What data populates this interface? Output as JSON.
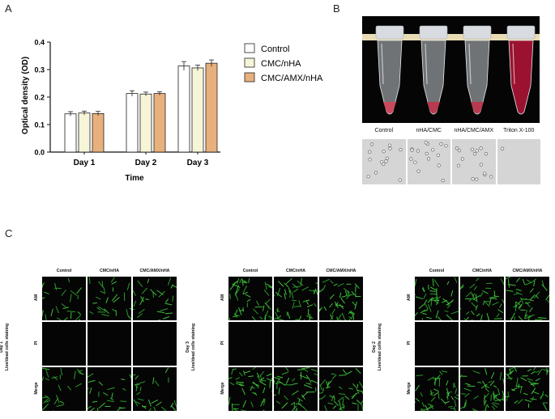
{
  "panels": {
    "a": "A",
    "b": "B",
    "c": "C"
  },
  "chart_data": {
    "type": "bar",
    "categories": [
      "Day 1",
      "Day 2",
      "Day 3"
    ],
    "series": [
      {
        "name": "Control",
        "values": [
          0.139,
          0.213,
          0.313
        ],
        "errors": [
          0.008,
          0.01,
          0.016
        ],
        "color": "#ffffff"
      },
      {
        "name": "CMC/nHA",
        "values": [
          0.142,
          0.211,
          0.306
        ],
        "errors": [
          0.007,
          0.007,
          0.01
        ],
        "color": "#f7f5d8"
      },
      {
        "name": "CMC/AMX/nHA",
        "values": [
          0.14,
          0.213,
          0.323
        ],
        "errors": [
          0.008,
          0.006,
          0.012
        ],
        "color": "#e8b07c"
      }
    ],
    "xlabel": "Time",
    "ylabel": "Optical density (OD)",
    "ylim": [
      0.0,
      0.4
    ],
    "yticks": [
      "0.0",
      "0.1",
      "0.2",
      "0.3",
      "0.4"
    ],
    "legend_position": "right",
    "grid": false
  },
  "hemolysis": {
    "tube_labels": [
      "Control",
      "nHA/CMC",
      "nHA/CMC/AMX",
      "Triton X-100"
    ],
    "tube_colors": [
      "#c94a5c",
      "#b83a4e",
      "#b83a4e",
      "#9a1230"
    ]
  },
  "livedead": {
    "col_headers": [
      "Control",
      "CMC/nHA",
      "CMC/AMX/nHA"
    ],
    "row_headers": [
      "AM",
      "PI",
      "Merge"
    ],
    "side_label": "Live/dead cells staining",
    "days": [
      "Day 1",
      "Day 3",
      "Day 2"
    ]
  }
}
